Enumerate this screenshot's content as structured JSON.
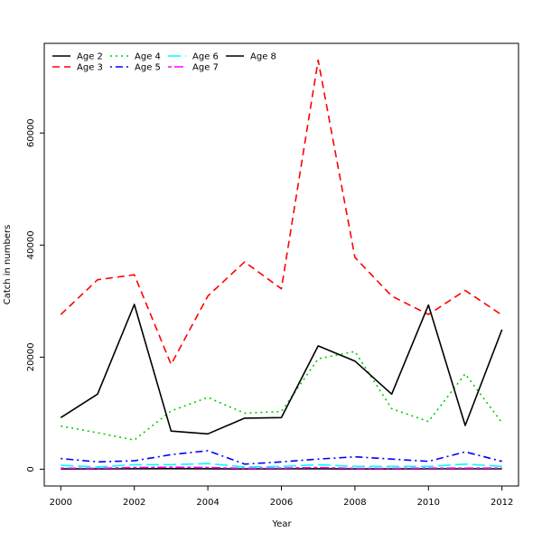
{
  "chart_data": {
    "type": "line",
    "xlabel": "Year",
    "ylabel": "Catch in numbers",
    "xlim": [
      1999.55,
      2012.45
    ],
    "ylim": [
      -3000,
      76000
    ],
    "x_ticks": [
      2000,
      2002,
      2004,
      2006,
      2008,
      2010,
      2012
    ],
    "y_ticks": [
      0,
      20000,
      40000,
      60000
    ],
    "grid": false,
    "legend_position": "top-left",
    "x": [
      2000,
      2001,
      2002,
      2003,
      2004,
      2005,
      2006,
      2007,
      2008,
      2009,
      2010,
      2011,
      2012
    ],
    "series": [
      {
        "name": "Age 2",
        "color": "#000000",
        "dash": "solid",
        "values": [
          9200,
          13400,
          29400,
          6800,
          6300,
          9100,
          9200,
          22000,
          19300,
          13400,
          29300,
          7800,
          24900
        ]
      },
      {
        "name": "Age 3",
        "color": "#FF0000",
        "dash": "dashed",
        "values": [
          27600,
          33800,
          34700,
          18700,
          30900,
          37000,
          32200,
          73000,
          37800,
          30900,
          27600,
          31900,
          27500
        ]
      },
      {
        "name": "Age 4",
        "color": "#00CD00",
        "dash": "dotted",
        "values": [
          7700,
          6500,
          5200,
          10400,
          12800,
          10000,
          10300,
          19700,
          21000,
          10800,
          8500,
          17000,
          8300
        ]
      },
      {
        "name": "Age 5",
        "color": "#0000FF",
        "dash": "dotdash",
        "values": [
          1900,
          1300,
          1500,
          2600,
          3300,
          900,
          1300,
          1800,
          2200,
          1800,
          1400,
          3100,
          1400
        ]
      },
      {
        "name": "Age 6",
        "color": "#00FFFF",
        "dash": "longdash",
        "values": [
          700,
          400,
          800,
          800,
          1000,
          400,
          500,
          800,
          500,
          500,
          500,
          900,
          500
        ]
      },
      {
        "name": "Age 7",
        "color": "#FF00FF",
        "dash": "twodash",
        "values": [
          200,
          150,
          300,
          350,
          300,
          150,
          200,
          300,
          150,
          150,
          200,
          200,
          200
        ]
      },
      {
        "name": "Age 8",
        "color": "#000000",
        "dash": "solid",
        "values": [
          50,
          40,
          80,
          100,
          80,
          40,
          60,
          80,
          40,
          40,
          60,
          60,
          60
        ]
      }
    ]
  }
}
